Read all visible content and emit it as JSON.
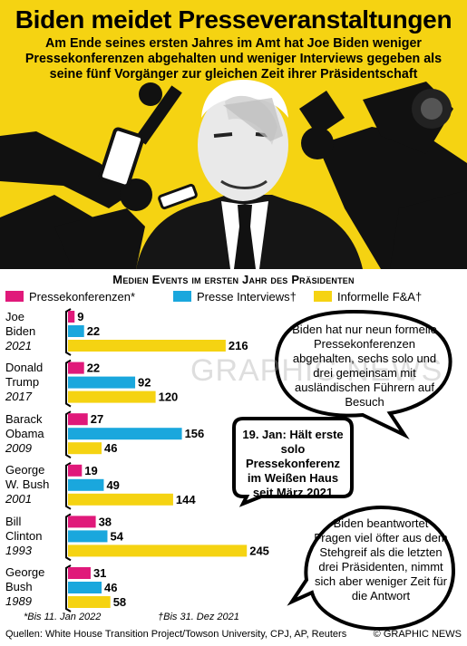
{
  "header": {
    "title": "Biden meidet Presseveranstaltungen",
    "subtitle": "Am Ende seines ersten Jahres im Amt hat Joe Biden weniger Pressekonferenzen abgehalten und weniger Interviews gegeben als seine fünf Vorgänger zur gleichen Zeit ihrer Präsidentschaft"
  },
  "colors": {
    "header_bg": "#f5d312",
    "press_conferences": "#e0197a",
    "press_interviews": "#1aa7dd",
    "informal_qa": "#f5d312"
  },
  "chart_data": {
    "type": "bar",
    "orientation": "horizontal",
    "title": "Medien Events im ersten Jahr des Präsidenten",
    "categories": [
      {
        "name": "Joe Biden",
        "year": "2021"
      },
      {
        "name": "Donald Trump",
        "year": "2017"
      },
      {
        "name": "Barack Obama",
        "year": "2009"
      },
      {
        "name": "George W. Bush",
        "year": "2001"
      },
      {
        "name": "Bill Clinton",
        "year": "1993"
      },
      {
        "name": "George Bush",
        "year": "1989"
      }
    ],
    "series": [
      {
        "name": "Pressekonferenzen*",
        "values": [
          9,
          22,
          27,
          19,
          38,
          31
        ]
      },
      {
        "name": "Presse Interviews†",
        "values": [
          22,
          92,
          156,
          49,
          54,
          46
        ]
      },
      {
        "name": "Informelle F&A†",
        "values": [
          216,
          120,
          46,
          144,
          245,
          58
        ]
      }
    ],
    "legend_position": "top"
  },
  "row_labels": [
    {
      "name1": "Joe",
      "name2": "Biden",
      "year": "2021"
    },
    {
      "name1": "Donald",
      "name2": "Trump",
      "year": "2017"
    },
    {
      "name1": "Barack",
      "name2": "Obama",
      "year": "2009"
    },
    {
      "name1": "George",
      "name2": "W. Bush",
      "year": "2001"
    },
    {
      "name1": "Bill",
      "name2": "Clinton",
      "year": "1993"
    },
    {
      "name1": "George",
      "name2": "Bush",
      "year": "1989"
    }
  ],
  "bubbles": {
    "b1": "Biden hat nur neun formelle Pressekonferenzen abgehalten, sechs solo und drei gemeinsam mit ausländischen Führern auf Besuch",
    "b2": "19. Jan: Hält erste solo Pressekonferenz im Weißen Haus seit März 2021",
    "b3": "Biden beantwortet Fragen viel öfter aus dem Stehgreif als die letzten drei Präsidenten, nimmt sich aber weniger Zeit für die Antwort"
  },
  "footnotes": {
    "fn1": "*Bis 11. Jan 2022",
    "fn2": "†Bis 31. Dez 2021"
  },
  "footer": {
    "sources": "Quellen: White House Transition Project/Towson University, CPJ, AP, Reuters",
    "copyright": "© GRAPHIC NEWS"
  },
  "watermark": "GRAPHIC NEWS"
}
